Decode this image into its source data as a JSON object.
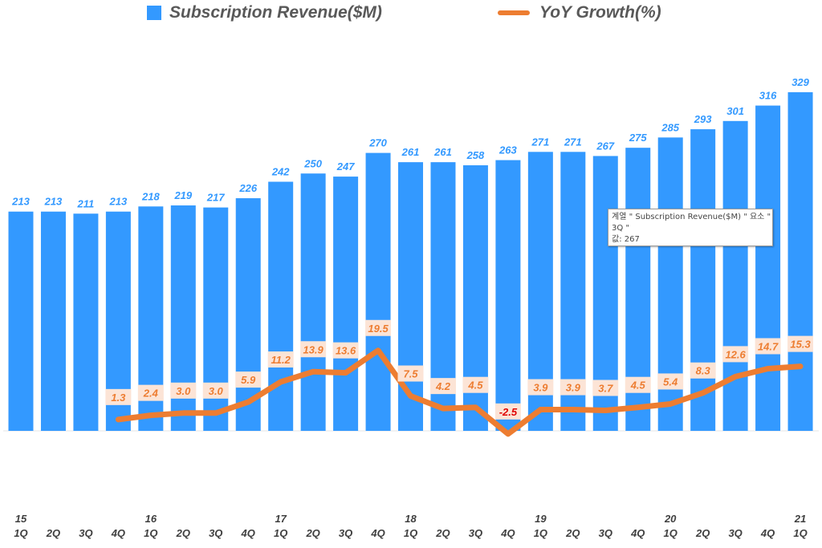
{
  "chart_data": {
    "type": "bar+line",
    "categories": [
      "1Q",
      "2Q",
      "3Q",
      "4Q",
      "1Q",
      "2Q",
      "3Q",
      "4Q",
      "1Q",
      "2Q",
      "3Q",
      "4Q",
      "1Q",
      "2Q",
      "3Q",
      "4Q",
      "1Q",
      "2Q",
      "3Q",
      "4Q",
      "1Q",
      "2Q",
      "3Q",
      "4Q",
      "1Q"
    ],
    "year_labels": [
      "15",
      "",
      "",
      "",
      "16",
      "",
      "",
      "",
      "17",
      "",
      "",
      "",
      "18",
      "",
      "",
      "",
      "19",
      "",
      "",
      "",
      "20",
      "",
      "",
      "",
      "21"
    ],
    "series": [
      {
        "name": "Subscription Revenue($M)",
        "type": "bar",
        "color": "#3399ff",
        "values": [
          213,
          213,
          211,
          213,
          218,
          219,
          217,
          226,
          242,
          250,
          247,
          270,
          261,
          261,
          258,
          263,
          271,
          271,
          267,
          275,
          285,
          293,
          301,
          316,
          329
        ]
      },
      {
        "name": "YoY Growth(%)",
        "type": "line",
        "color": "#ed7d31",
        "values": [
          null,
          null,
          null,
          1.3,
          2.4,
          3.0,
          3.0,
          5.9,
          11.2,
          13.9,
          13.6,
          19.5,
          7.5,
          4.2,
          4.5,
          -2.5,
          3.9,
          3.9,
          3.7,
          4.5,
          5.4,
          8.3,
          12.6,
          14.7,
          15.3
        ]
      }
    ],
    "legend": "top",
    "grid": false
  },
  "legend": {
    "bar_label": "Subscription Revenue($M)",
    "line_label": "YoY Growth(%)"
  },
  "tooltip": {
    "text": "계열 \" Subscription Revenue($M) \" 요소 \"\n3Q \"\n값: 267"
  }
}
